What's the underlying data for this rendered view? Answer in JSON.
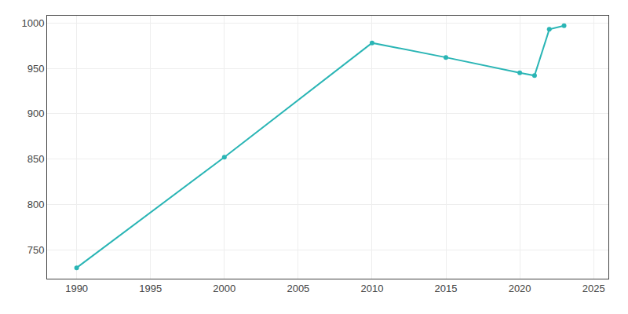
{
  "chart_data": {
    "type": "line",
    "x": [
      1990,
      2000,
      2010,
      2015,
      2020,
      2021,
      2022,
      2023
    ],
    "values": [
      730,
      852,
      978,
      962,
      945,
      942,
      993,
      997
    ],
    "color": "#2ab5b5",
    "marker": "circle",
    "xlim": [
      1988,
      2026
    ],
    "xticks": [
      1990,
      1995,
      2000,
      2005,
      2010,
      2015,
      2020,
      2025
    ],
    "ylim": [
      718,
      1008
    ],
    "yticks": [
      750,
      800,
      850,
      900,
      950,
      1000
    ],
    "grid": true
  }
}
